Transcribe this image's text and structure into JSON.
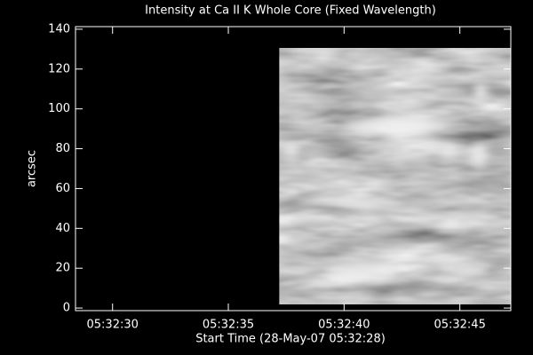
{
  "chart_data": {
    "type": "image",
    "title": "Intensity at Ca II K Whole Core (Fixed Wavelength)",
    "x_label": "Start Time (28-May-07 05:32:28)",
    "y_label": "arcsec",
    "xlim": [
      0.4,
      19.2
    ],
    "xticks": [
      {
        "value": 2,
        "label": "05:32:30"
      },
      {
        "value": 7,
        "label": "05:32:35"
      },
      {
        "value": 12,
        "label": "05:32:40"
      },
      {
        "value": 17,
        "label": "05:32:45"
      }
    ],
    "ylim": [
      -1.3,
      141.3
    ],
    "yticks": [
      0,
      20,
      40,
      60,
      80,
      100,
      120,
      140
    ],
    "image_x": [
      9.2,
      19.2
    ],
    "image_y": [
      1.8,
      130.6
    ],
    "colormap": "gray"
  }
}
